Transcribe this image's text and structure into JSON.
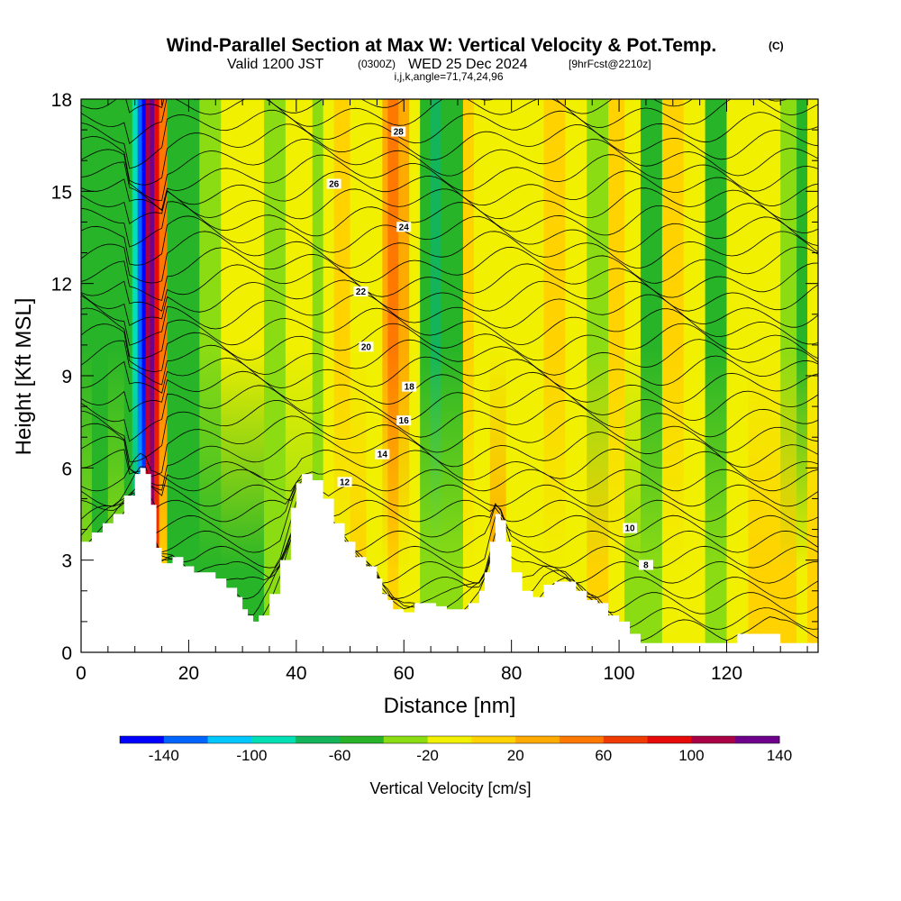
{
  "chart_data": {
    "type": "heatmap",
    "title": "Wind-Parallel Section at Max W: Vertical Velocity & Pot.Temp.",
    "title_tag": "(C)",
    "subtitle_valid": "Valid 1200 JST",
    "subtitle_zulu": "(0300Z)",
    "subtitle_date": "WED 25 Dec 2024",
    "subtitle_fcst": "[9hrFcst@2210z]",
    "subtitle_indices": "i,j,k,angle=71,74,24,96",
    "xlabel": "Distance [nm]",
    "ylabel": "Height [Kft MSL]",
    "xlim": [
      0,
      137
    ],
    "ylim": [
      0,
      18
    ],
    "x_ticks": [
      "0",
      "20",
      "40",
      "60",
      "80",
      "100",
      "120"
    ],
    "y_ticks": [
      "0",
      "3",
      "6",
      "9",
      "12",
      "15",
      "18"
    ],
    "colorbar": {
      "title": "Vertical Velocity [cm/s]",
      "tick_labels": [
        "-140",
        "-100",
        "-60",
        "-20",
        "20",
        "60",
        "100",
        "140"
      ],
      "colors": [
        "#0000ff",
        "#0064ff",
        "#00c8ff",
        "#00e0b4",
        "#14b45a",
        "#28b428",
        "#8cdc14",
        "#f0f000",
        "#ffd200",
        "#ffaa00",
        "#ff7800",
        "#f03c00",
        "#e60a0a",
        "#aa0046",
        "#6e008c"
      ]
    },
    "theta_contour_labels": [
      "28",
      "26",
      "24",
      "22",
      "20",
      "18",
      "16",
      "14",
      "12",
      "10",
      "8"
    ],
    "terrain_profile": {
      "x": [
        0,
        2,
        4,
        6,
        8,
        10,
        11,
        12,
        13,
        14,
        15,
        17,
        19,
        21,
        23,
        25,
        27,
        29,
        30,
        31,
        32,
        33,
        35,
        37,
        39,
        40,
        41,
        43,
        45,
        47,
        49,
        51,
        53,
        55,
        56,
        57,
        58,
        60,
        62,
        64,
        66,
        68,
        70,
        72,
        74,
        75,
        76,
        77,
        78,
        79,
        80,
        82,
        84,
        86,
        88,
        90,
        92,
        94,
        96,
        98,
        100,
        102,
        104,
        106,
        108,
        110,
        112,
        114,
        116,
        118,
        120,
        122,
        124,
        126,
        128,
        130,
        132,
        134,
        137
      ],
      "height": [
        3.6,
        3.9,
        4.2,
        4.5,
        5.1,
        5.8,
        6.0,
        5.8,
        4.8,
        3.4,
        2.9,
        3.1,
        2.8,
        2.6,
        2.6,
        2.4,
        2.1,
        1.8,
        1.4,
        1.2,
        1.0,
        1.2,
        1.9,
        3.0,
        4.7,
        5.5,
        5.8,
        5.6,
        5.0,
        4.2,
        3.6,
        3.1,
        2.8,
        2.4,
        1.9,
        1.7,
        1.4,
        1.3,
        1.6,
        1.6,
        1.5,
        1.4,
        1.4,
        1.6,
        2.0,
        2.6,
        3.6,
        4.5,
        4.3,
        3.6,
        2.6,
        2.0,
        1.8,
        2.2,
        2.3,
        2.3,
        2.0,
        1.7,
        1.6,
        1.2,
        1.0,
        0.6,
        0.3,
        0.3,
        0.3,
        0.3,
        0.3,
        0.3,
        0.3,
        0.3,
        0.3,
        0.6,
        0.6,
        0.6,
        0.6,
        0.3,
        0.3,
        0.3,
        0.3
      ]
    },
    "velocity_columns": {
      "x": [
        0,
        2,
        5,
        8,
        9.5,
        10.5,
        11.3,
        12,
        12.8,
        13.6,
        14.5,
        16,
        18,
        22,
        26,
        30,
        34,
        38,
        40,
        43,
        45,
        47,
        50,
        53,
        56,
        57,
        58,
        59,
        61,
        63,
        65,
        67,
        69,
        71,
        73,
        76,
        79,
        82,
        86,
        90,
        94,
        98,
        101,
        104,
        108,
        112,
        116,
        120,
        124,
        127,
        130,
        133,
        135,
        137
      ],
      "upper_w": [
        -25,
        -30,
        -25,
        -35,
        -70,
        -110,
        -130,
        120,
        140,
        110,
        60,
        -30,
        -40,
        -10,
        10,
        5,
        -5,
        10,
        15,
        -10,
        10,
        30,
        15,
        10,
        40,
        60,
        70,
        40,
        15,
        -25,
        -45,
        -40,
        -30,
        20,
        10,
        5,
        10,
        15,
        20,
        10,
        -10,
        20,
        15,
        -25,
        20,
        10,
        -25,
        10,
        15,
        10,
        -20,
        -25,
        15,
        10
      ],
      "lower_w": [
        -20,
        -25,
        -20,
        -25,
        -60,
        -100,
        -120,
        110,
        130,
        80,
        20,
        -25,
        -25,
        -30,
        -30,
        -25,
        -20,
        -15,
        -10,
        -20,
        10,
        15,
        20,
        10,
        15,
        25,
        20,
        15,
        10,
        -10,
        -15,
        -10,
        -15,
        10,
        5,
        40,
        10,
        15,
        5,
        10,
        25,
        10,
        -15,
        -15,
        10,
        15,
        -15,
        10,
        20,
        25,
        20,
        15,
        20,
        15
      ]
    }
  }
}
